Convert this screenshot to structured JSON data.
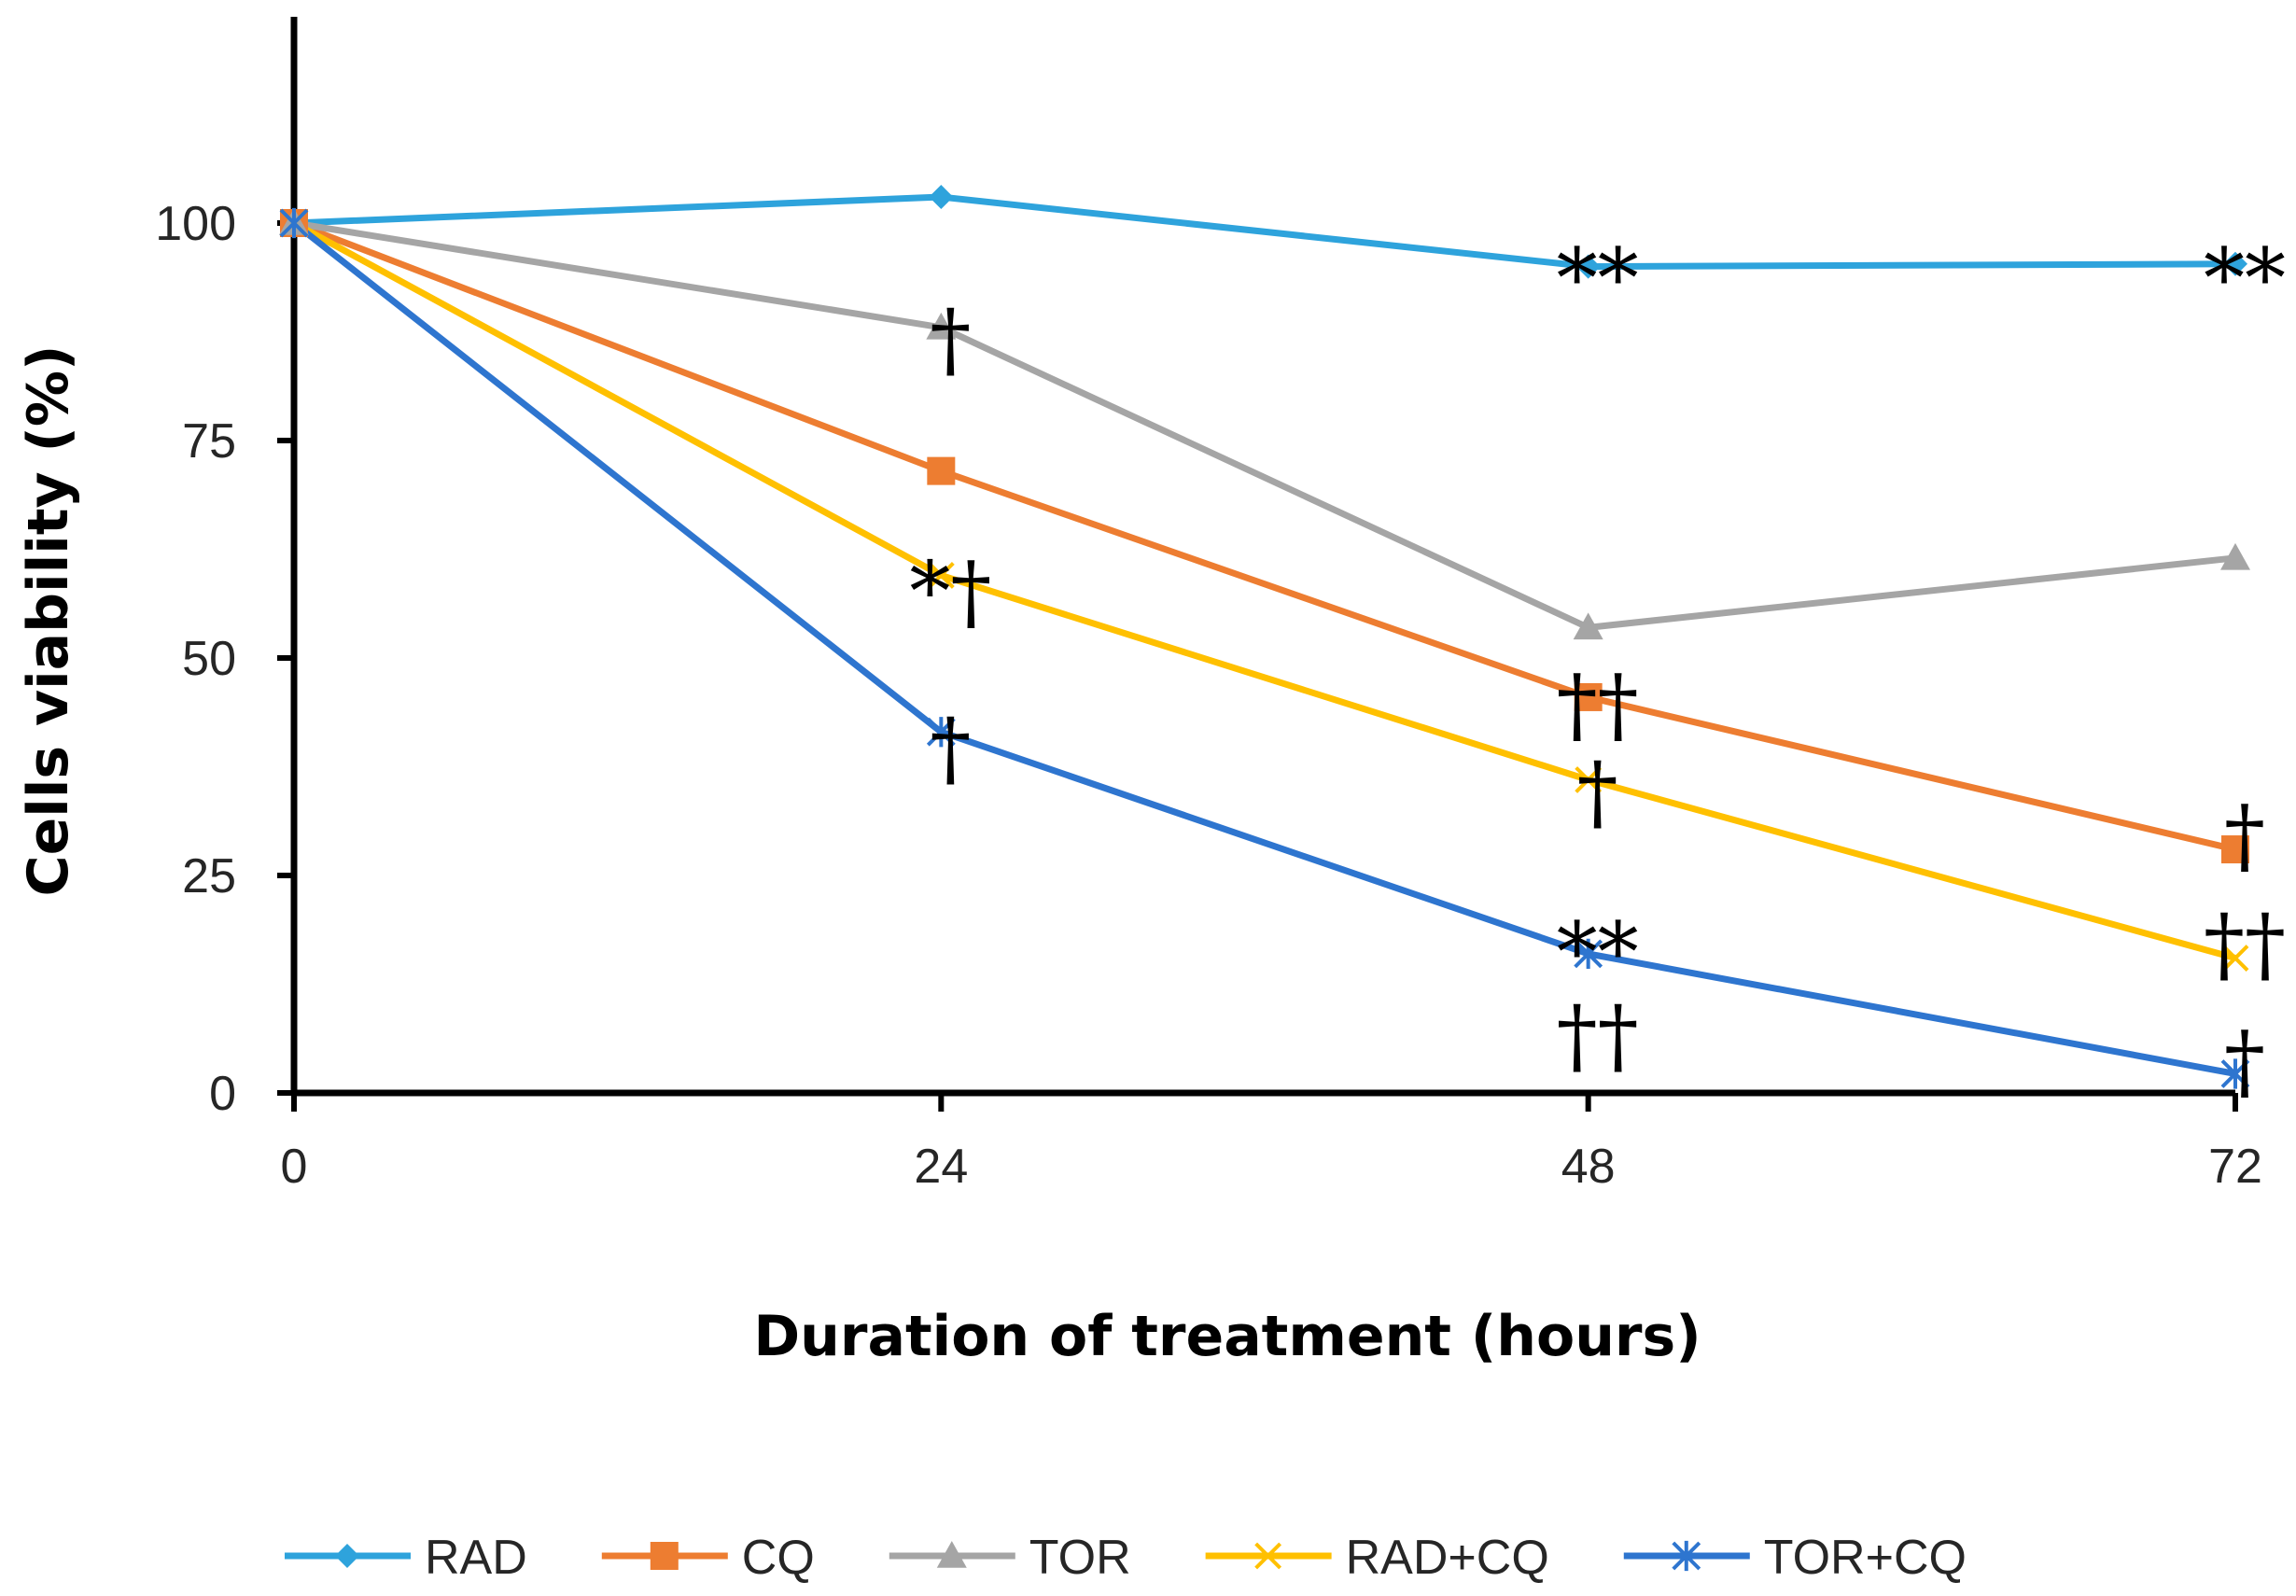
{
  "chart_data": {
    "type": "line",
    "title": "",
    "xlabel": "Duration of treatment (hours)",
    "ylabel": "Cells viability (%)",
    "x": [
      0,
      24,
      48,
      72
    ],
    "x_tick_labels": [
      "0",
      "24",
      "48",
      "72"
    ],
    "y_ticks": [
      0,
      25,
      50,
      75,
      100
    ],
    "y_tick_labels": [
      "0",
      "25",
      "50",
      "75",
      "100"
    ],
    "xlim": [
      0,
      72
    ],
    "ylim": [
      0,
      123
    ],
    "grid": false,
    "legend_position": "bottom",
    "series": [
      {
        "name": "RAD",
        "values": [
          100,
          103,
          95,
          95.3
        ],
        "color": "#2ea3dc",
        "marker": "diamond"
      },
      {
        "name": "CQ",
        "values": [
          100,
          71.5,
          45.5,
          28
        ],
        "color": "#ed7d31",
        "marker": "square"
      },
      {
        "name": "TOR",
        "values": [
          100,
          88,
          53.5,
          61.5
        ],
        "color": "#a5a5a5",
        "marker": "triangle"
      },
      {
        "name": "RAD+CQ",
        "values": [
          100,
          59.5,
          36,
          15.5
        ],
        "color": "#ffc000",
        "marker": "x"
      },
      {
        "name": "TOR+CQ",
        "values": [
          100,
          41.5,
          16,
          2.2
        ],
        "color": "#2e75cf",
        "marker": "star"
      }
    ],
    "annotations": [
      {
        "text": "**",
        "x": 48,
        "y": 94,
        "size": "large"
      },
      {
        "text": "**",
        "x": 72,
        "y": 94,
        "size": "large"
      },
      {
        "text": "†",
        "x": 24,
        "y": 87,
        "size": "large"
      },
      {
        "text": "*†",
        "x": 24,
        "y": 58,
        "size": "large"
      },
      {
        "text": "††",
        "x": 48,
        "y": 45,
        "size": "large"
      },
      {
        "text": "†",
        "x": 48,
        "y": 35,
        "size": "large"
      },
      {
        "text": "†",
        "x": 24,
        "y": 40,
        "size": "large"
      },
      {
        "text": "†",
        "x": 72,
        "y": 30,
        "size": "large"
      },
      {
        "text": "††",
        "x": 72,
        "y": 17.5,
        "size": "large"
      },
      {
        "text": "**",
        "x": 48,
        "y": 16.5,
        "size": "large"
      },
      {
        "text": "††",
        "x": 48,
        "y": 7,
        "size": "large"
      },
      {
        "text": "†",
        "x": 72,
        "y": 4,
        "size": "large"
      }
    ]
  }
}
